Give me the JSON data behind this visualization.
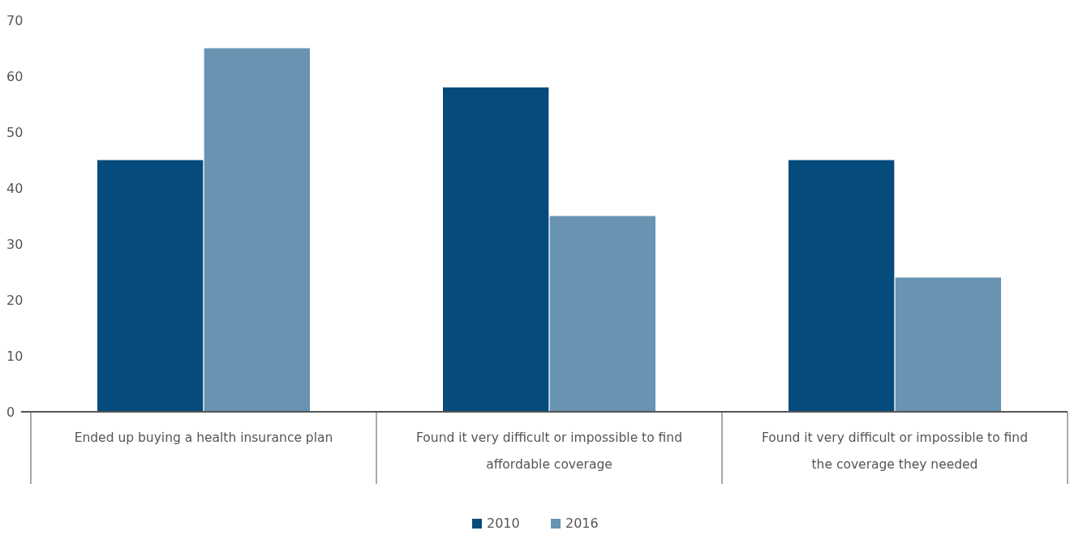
{
  "chart_data": {
    "type": "bar",
    "categories": [
      "Ended up buying a health insurance plan",
      "Found it very difficult or impossible to find affordable coverage",
      "Found it very difficult or impossible to find the coverage they needed"
    ],
    "series": [
      {
        "name": "2010",
        "color": "#054b7c",
        "values": [
          45,
          58,
          45
        ]
      },
      {
        "name": "2016",
        "color": "#6893b3",
        "values": [
          65,
          35,
          24
        ]
      }
    ],
    "ylim": [
      0,
      70
    ],
    "yticks": [
      0,
      10,
      20,
      30,
      40,
      50,
      60,
      70
    ],
    "grid": false,
    "legend": "bottom"
  }
}
